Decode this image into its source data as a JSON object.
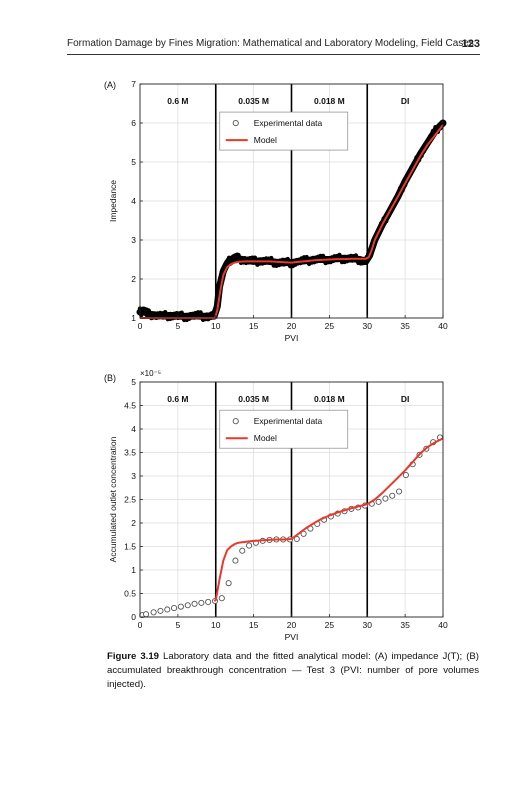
{
  "header": {
    "title": "Formation Damage by Fines Migration: Mathematical and Laboratory Modeling, Field Cases",
    "page_number": "123"
  },
  "colors": {
    "experimental": "#000000",
    "model": "#e8392a",
    "grid": "#dcdcdc",
    "axis": "#222222"
  },
  "chart_data": [
    {
      "type": "line",
      "panel_label": "(A)",
      "xlabel": "PVI",
      "ylabel": "Impedance",
      "xlim": [
        0,
        40
      ],
      "ylim": [
        1,
        7
      ],
      "xticks": [
        "0",
        "5",
        "10",
        "15",
        "20",
        "25",
        "30",
        "35",
        "40"
      ],
      "yticks": [
        "1",
        "2",
        "3",
        "4",
        "5",
        "6",
        "7"
      ],
      "grid": true,
      "stage_boundaries": [
        10,
        20,
        30
      ],
      "stage_labels": [
        {
          "x": 5,
          "label": "0.6 M"
        },
        {
          "x": 15,
          "label": "0.035 M"
        },
        {
          "x": 25,
          "label": "0.018 M"
        },
        {
          "x": 35,
          "label": "DI"
        }
      ],
      "legend": {
        "position": "top-center",
        "entries": [
          "Experimental data",
          "Model"
        ]
      },
      "series": [
        {
          "name": "Experimental data",
          "style": "dense-markers",
          "x": [
            0,
            0.5,
            1,
            2,
            3,
            4,
            5,
            6,
            7,
            8,
            9,
            9.8,
            10.2,
            10.5,
            11,
            11.5,
            12,
            12.5,
            13,
            14,
            15,
            16,
            17,
            18,
            19,
            20,
            21,
            22,
            23,
            24,
            25,
            26,
            27,
            28,
            29,
            29.8,
            30.3,
            31,
            32,
            33,
            34,
            35,
            36,
            37,
            38,
            39,
            40
          ],
          "y": [
            1.15,
            1.2,
            1.1,
            1.08,
            1.05,
            1.07,
            1.05,
            1.04,
            1.06,
            1.05,
            1.04,
            1.05,
            1.3,
            1.8,
            2.2,
            2.4,
            2.5,
            2.55,
            2.52,
            2.48,
            2.45,
            2.47,
            2.45,
            2.43,
            2.42,
            2.42,
            2.45,
            2.47,
            2.5,
            2.5,
            2.5,
            2.52,
            2.53,
            2.52,
            2.5,
            2.45,
            2.6,
            3.0,
            3.4,
            3.75,
            4.1,
            4.5,
            4.85,
            5.2,
            5.5,
            5.8,
            6.0
          ]
        },
        {
          "name": "Model",
          "style": "line",
          "x": [
            0,
            9.9,
            10.2,
            10.6,
            11,
            11.5,
            12,
            12.5,
            13,
            14,
            15,
            16,
            17,
            18,
            19,
            20,
            21,
            22,
            23,
            24,
            25,
            26,
            27,
            28,
            29,
            29.8,
            30.2,
            30.6,
            31,
            32,
            33,
            34,
            35,
            36,
            37,
            38,
            39,
            40
          ],
          "y": [
            1.0,
            1.0,
            1.2,
            1.7,
            2.1,
            2.3,
            2.38,
            2.42,
            2.44,
            2.45,
            2.45,
            2.45,
            2.45,
            2.44,
            2.43,
            2.42,
            2.44,
            2.46,
            2.48,
            2.49,
            2.5,
            2.51,
            2.51,
            2.52,
            2.52,
            2.52,
            2.56,
            2.75,
            3.0,
            3.4,
            3.75,
            4.1,
            4.45,
            4.8,
            5.15,
            5.45,
            5.7,
            5.95
          ]
        }
      ]
    },
    {
      "type": "scatter",
      "panel_label": "(B)",
      "xlabel": "PVI",
      "ylabel": "Accumulated outlet concentration",
      "y_multiplier": "×10⁻⁵",
      "xlim": [
        0,
        40
      ],
      "ylim": [
        0,
        5
      ],
      "xticks": [
        "0",
        "5",
        "10",
        "15",
        "20",
        "25",
        "30",
        "35",
        "40"
      ],
      "yticks": [
        "0",
        "0.5",
        "1",
        "1.5",
        "2",
        "2.5",
        "3",
        "3.5",
        "4",
        "4.5",
        "5"
      ],
      "grid": true,
      "stage_boundaries": [
        10,
        20,
        30
      ],
      "stage_labels": [
        {
          "x": 5,
          "label": "0.6 M"
        },
        {
          "x": 15,
          "label": "0.035 M"
        },
        {
          "x": 25,
          "label": "0.018 M"
        },
        {
          "x": 35,
          "label": "DI"
        }
      ],
      "legend": {
        "position": "top-center",
        "entries": [
          "Experimental data",
          "Model"
        ]
      },
      "series": [
        {
          "name": "Experimental data",
          "style": "open-circles",
          "x": [
            0.3,
            0.8,
            1.8,
            2.7,
            3.6,
            4.5,
            5.4,
            6.3,
            7.2,
            8.1,
            9.0,
            9.9,
            10.8,
            11.7,
            12.6,
            13.5,
            14.4,
            15.3,
            16.2,
            17.1,
            18.0,
            18.9,
            19.8,
            20.7,
            21.6,
            22.5,
            23.4,
            24.3,
            25.2,
            26.1,
            27.0,
            27.9,
            28.8,
            29.7,
            30.6,
            31.5,
            32.4,
            33.3,
            34.2,
            35.1,
            36.0,
            36.9,
            37.8,
            38.7,
            39.6
          ],
          "y": [
            0.04,
            0.06,
            0.1,
            0.13,
            0.16,
            0.19,
            0.22,
            0.25,
            0.28,
            0.3,
            0.32,
            0.34,
            0.4,
            0.72,
            1.2,
            1.41,
            1.52,
            1.58,
            1.62,
            1.64,
            1.65,
            1.65,
            1.65,
            1.66,
            1.77,
            1.88,
            1.98,
            2.07,
            2.14,
            2.2,
            2.25,
            2.3,
            2.33,
            2.37,
            2.41,
            2.45,
            2.52,
            2.58,
            2.67,
            3.02,
            3.25,
            3.45,
            3.58,
            3.72,
            3.82
          ]
        },
        {
          "name": "Model",
          "style": "line",
          "x": [
            9.8,
            10.0,
            10.5,
            11,
            11.5,
            12,
            12.5,
            13,
            14,
            15,
            16,
            17,
            18,
            19,
            20,
            21,
            22,
            23,
            24,
            25,
            26,
            27,
            28,
            29,
            30,
            31,
            32,
            33,
            34,
            35,
            36,
            37,
            38,
            39,
            40
          ],
          "y": [
            0.34,
            0.36,
            0.8,
            1.2,
            1.42,
            1.5,
            1.55,
            1.58,
            1.6,
            1.62,
            1.63,
            1.64,
            1.65,
            1.65,
            1.66,
            1.78,
            1.9,
            2.0,
            2.09,
            2.16,
            2.22,
            2.27,
            2.32,
            2.36,
            2.4,
            2.5,
            2.64,
            2.8,
            2.96,
            3.12,
            3.3,
            3.48,
            3.62,
            3.72,
            3.8
          ]
        }
      ]
    }
  ],
  "caption": {
    "label": "Figure 3.19",
    "text": "Laboratory data and the fitted analytical model: (A) impedance J(T); (B) accumulated breakthrough concentration — Test 3 (PVI: number of pore volumes injected)."
  }
}
